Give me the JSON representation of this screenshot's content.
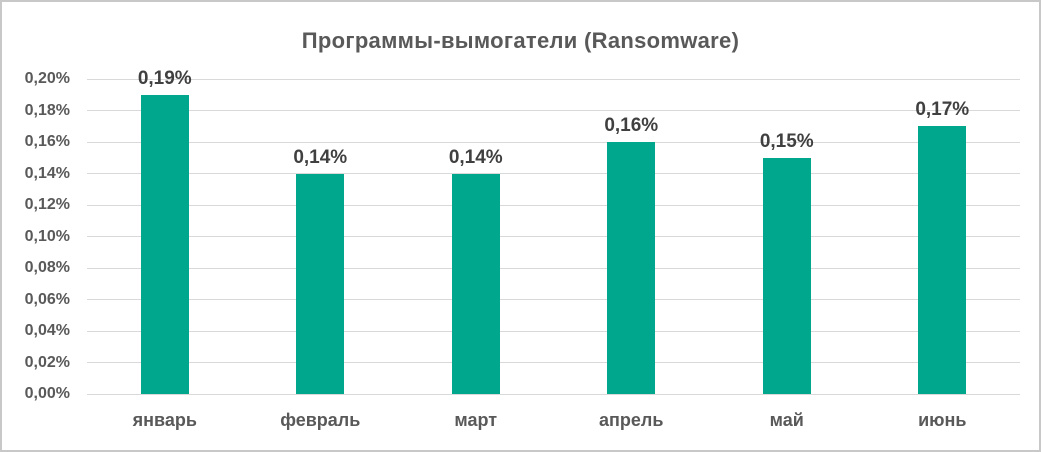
{
  "chart_data": {
    "type": "bar",
    "title": "Программы-вымогатели (Ransomware)",
    "categories": [
      "январь",
      "февраль",
      "март",
      "апрель",
      "май",
      "июнь"
    ],
    "values": [
      0.19,
      0.14,
      0.14,
      0.16,
      0.15,
      0.17
    ],
    "data_labels": [
      "0,19%",
      "0,14%",
      "0,14%",
      "0,16%",
      "0,15%",
      "0,17%"
    ],
    "unit": "%",
    "xlabel": "",
    "ylabel": "",
    "ylim": [
      0,
      0.2
    ],
    "ytick_step": 0.02,
    "yticks": [
      {
        "value": 0.2,
        "label": "0,20%"
      },
      {
        "value": 0.18,
        "label": "0,18%"
      },
      {
        "value": 0.16,
        "label": "0,16%"
      },
      {
        "value": 0.14,
        "label": "0,14%"
      },
      {
        "value": 0.12,
        "label": "0,12%"
      },
      {
        "value": 0.1,
        "label": "0,10%"
      },
      {
        "value": 0.08,
        "label": "0,08%"
      },
      {
        "value": 0.06,
        "label": "0,06%"
      },
      {
        "value": 0.04,
        "label": "0,04%"
      },
      {
        "value": 0.02,
        "label": "0,02%"
      },
      {
        "value": 0.0,
        "label": "0,00%"
      }
    ],
    "grid": true,
    "legend": "none",
    "colors": {
      "bar": "#00a78c",
      "title": "#595959",
      "axis_label": "#595959",
      "data_label": "#404040",
      "gridline": "#d9d9d9",
      "background": "#ffffff",
      "border": "#c8c8c8"
    }
  }
}
